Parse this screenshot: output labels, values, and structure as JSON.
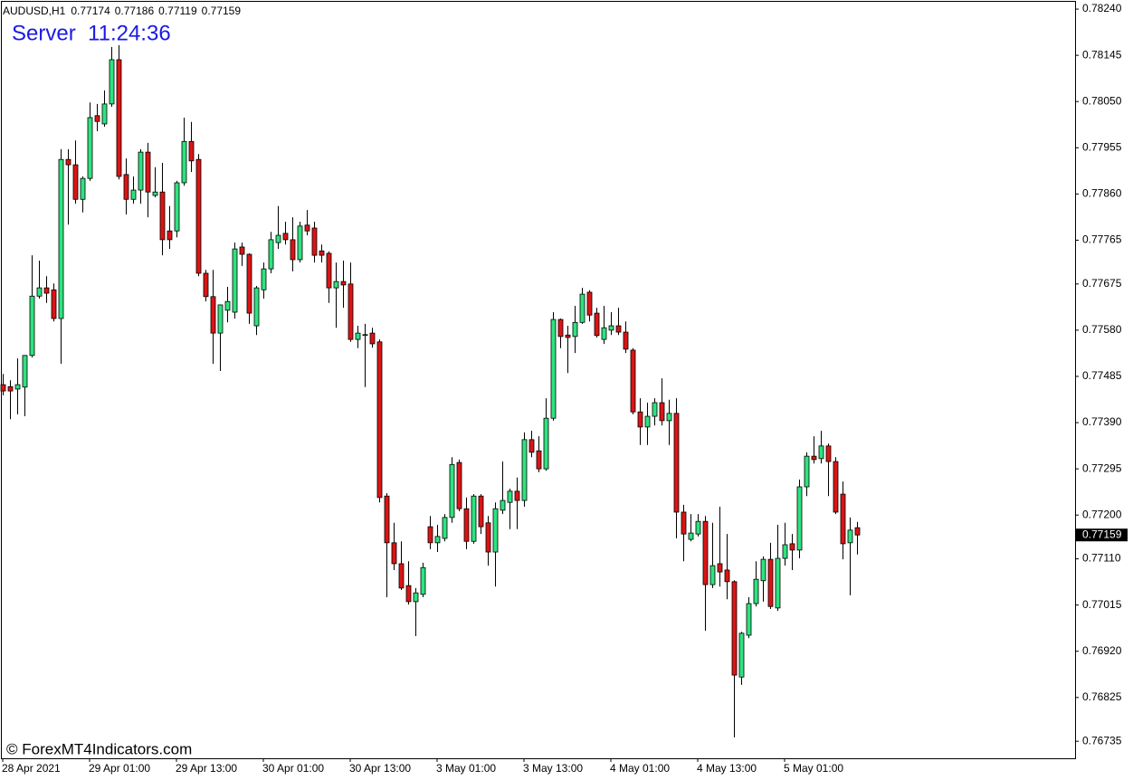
{
  "chart_data": {
    "type": "candlestick",
    "symbol": "AUDUSD,H1",
    "server_time": "Server  11:24:36",
    "watermark": "© ForexMT4Indicators.com",
    "up_color": "#2ee37f",
    "down_color": "#dc1414",
    "ylim": [
      0.767,
      0.78255
    ],
    "yticks": [
      {
        "value": 0.7824,
        "label": "0.78240"
      },
      0.78145,
      {
        "value": 0.7805,
        "label": "0.78050"
      },
      0.77955,
      {
        "value": 0.7786,
        "label": "0.77860"
      },
      0.77765,
      0.77675,
      {
        "value": 0.7758,
        "label": "0.77580"
      },
      0.77485,
      {
        "value": 0.7739,
        "label": "0.77390"
      },
      0.77295,
      {
        "value": 0.772,
        "label": "0.77200"
      },
      {
        "value": 0.7711,
        "label": "0.77110"
      },
      0.77015,
      {
        "value": 0.7692,
        "label": "0.76920"
      },
      0.76825,
      0.76735
    ],
    "x": [
      "28 Apr 2021",
      null,
      null,
      null,
      null,
      null,
      null,
      null,
      null,
      null,
      null,
      null,
      "29 Apr 01:00",
      null,
      null,
      null,
      null,
      null,
      null,
      null,
      null,
      null,
      null,
      null,
      "29 Apr 13:00",
      null,
      null,
      null,
      null,
      null,
      null,
      null,
      null,
      null,
      null,
      null,
      "30 Apr 01:00",
      null,
      null,
      null,
      null,
      null,
      null,
      null,
      null,
      null,
      null,
      null,
      "30 Apr 13:00",
      null,
      null,
      null,
      null,
      null,
      null,
      null,
      null,
      null,
      null,
      null,
      "3 May 01:00",
      null,
      null,
      null,
      null,
      null,
      null,
      null,
      null,
      null,
      null,
      null,
      "3 May 13:00",
      null,
      null,
      null,
      null,
      null,
      null,
      null,
      null,
      null,
      null,
      null,
      "4 May 01:00",
      null,
      null,
      null,
      null,
      null,
      null,
      null,
      null,
      null,
      null,
      null,
      "4 May 13:00",
      null,
      null,
      null,
      null,
      null,
      null,
      null,
      null,
      null,
      null,
      null,
      "5 May 01:00",
      null,
      null,
      null,
      null,
      null,
      null,
      null,
      null,
      null,
      null
    ],
    "ohlc": [
      [
        0.77468,
        0.7749,
        0.77446,
        0.77455
      ],
      [
        0.77464,
        0.77477,
        0.77397,
        0.77455
      ],
      [
        0.77459,
        0.77522,
        0.77407,
        0.77468
      ],
      [
        0.77463,
        0.77529,
        0.77403,
        0.77528
      ],
      [
        0.77528,
        0.77734,
        0.77524,
        0.7765
      ],
      [
        0.7765,
        0.77723,
        0.77645,
        0.77667
      ],
      [
        0.77667,
        0.77691,
        0.77636,
        0.77656
      ],
      [
        0.77663,
        0.77676,
        0.77598,
        0.77604
      ],
      [
        0.77604,
        0.77952,
        0.77511,
        0.77931
      ],
      [
        0.77931,
        0.77952,
        0.77797,
        0.7792
      ],
      [
        0.7792,
        0.7797,
        0.7784,
        0.77849
      ],
      [
        0.77849,
        0.77896,
        0.77822,
        0.77892
      ],
      [
        0.77892,
        0.78048,
        0.77887,
        0.78017
      ],
      [
        0.78021,
        0.78045,
        0.77989,
        0.78009
      ],
      [
        0.78004,
        0.78073,
        0.77998,
        0.78045
      ],
      [
        0.78045,
        0.78162,
        0.78039,
        0.78136
      ],
      [
        0.78136,
        0.78166,
        0.7789,
        0.77896
      ],
      [
        0.779,
        0.77933,
        0.77818,
        0.77849
      ],
      [
        0.77849,
        0.77896,
        0.7784,
        0.77868
      ],
      [
        0.77868,
        0.77952,
        0.7784,
        0.77946
      ],
      [
        0.77946,
        0.77965,
        0.77812,
        0.77864
      ],
      [
        0.77857,
        0.77915,
        0.77853,
        0.77864
      ],
      [
        0.77864,
        0.77924,
        0.77734,
        0.77766
      ],
      [
        0.77784,
        0.77835,
        0.77747,
        0.77766
      ],
      [
        0.77784,
        0.77887,
        0.77771,
        0.77883
      ],
      [
        0.77883,
        0.78017,
        0.77877,
        0.77968
      ],
      [
        0.77968,
        0.78008,
        0.77905,
        0.77928
      ],
      [
        0.77931,
        0.77942,
        0.77691,
        0.77697
      ],
      [
        0.77697,
        0.77704,
        0.77639,
        0.77649
      ],
      [
        0.77649,
        0.77704,
        0.77511,
        0.77574
      ],
      [
        0.77574,
        0.77632,
        0.77496,
        0.77632
      ],
      [
        0.77621,
        0.77669,
        0.77596,
        0.77639
      ],
      [
        0.77617,
        0.7776,
        0.77604,
        0.77747
      ],
      [
        0.77751,
        0.7776,
        0.77712,
        0.77736
      ],
      [
        0.77736,
        0.77738,
        0.77593,
        0.77615
      ],
      [
        0.77589,
        0.77671,
        0.7757,
        0.77667
      ],
      [
        0.77663,
        0.77719,
        0.77645,
        0.77706
      ],
      [
        0.77706,
        0.77782,
        0.77697,
        0.77766
      ],
      [
        0.7776,
        0.77835,
        0.77747,
        0.77775
      ],
      [
        0.77779,
        0.77803,
        0.77756,
        0.77766
      ],
      [
        0.77766,
        0.77812,
        0.77701,
        0.77725
      ],
      [
        0.77725,
        0.77803,
        0.77719,
        0.77794
      ],
      [
        0.77796,
        0.77827,
        0.77775,
        0.77784
      ],
      [
        0.7779,
        0.77803,
        0.77719,
        0.77734
      ],
      [
        0.77743,
        0.77756,
        0.77719,
        0.77734
      ],
      [
        0.77738,
        0.77742,
        0.77636,
        0.77667
      ],
      [
        0.77667,
        0.77719,
        0.77585,
        0.7768
      ],
      [
        0.7768,
        0.77723,
        0.77626,
        0.77673
      ],
      [
        0.77675,
        0.77719,
        0.77556,
        0.77561
      ],
      [
        0.77561,
        0.77589,
        0.77543,
        0.77574
      ],
      [
        0.7757,
        0.77593,
        0.77463,
        0.77571
      ],
      [
        0.77574,
        0.77585,
        0.77544,
        0.77552
      ],
      [
        0.77556,
        0.77561,
        0.77226,
        0.77236
      ],
      [
        0.77239,
        0.77245,
        0.77031,
        0.77143
      ],
      [
        0.77143,
        0.77184,
        0.77087,
        0.771
      ],
      [
        0.771,
        0.77146,
        0.77046,
        0.7705
      ],
      [
        0.77055,
        0.77105,
        0.77016,
        0.77022
      ],
      [
        0.77022,
        0.7705,
        0.76951,
        0.7704
      ],
      [
        0.77037,
        0.77102,
        0.77031,
        0.77092
      ],
      [
        0.77176,
        0.77198,
        0.7713,
        0.77143
      ],
      [
        0.77143,
        0.7718,
        0.77124,
        0.77156
      ],
      [
        0.77152,
        0.77202,
        0.77146,
        0.77195
      ],
      [
        0.77195,
        0.77319,
        0.77184,
        0.77304
      ],
      [
        0.77308,
        0.77314,
        0.77208,
        0.77213
      ],
      [
        0.77213,
        0.77236,
        0.7713,
        0.77146
      ],
      [
        0.77146,
        0.77243,
        0.77141,
        0.77239
      ],
      [
        0.77239,
        0.77243,
        0.77161,
        0.77176
      ],
      [
        0.77184,
        0.77198,
        0.77096,
        0.77124
      ],
      [
        0.77124,
        0.77226,
        0.77053,
        0.77213
      ],
      [
        0.7721,
        0.7731,
        0.77202,
        0.7723
      ],
      [
        0.77226,
        0.77254,
        0.77171,
        0.77249
      ],
      [
        0.77249,
        0.77277,
        0.77171,
        0.7723
      ],
      [
        0.7723,
        0.7737,
        0.77217,
        0.77355
      ],
      [
        0.77355,
        0.77373,
        0.77319,
        0.77329
      ],
      [
        0.77332,
        0.77362,
        0.77288,
        0.77295
      ],
      [
        0.77295,
        0.7744,
        0.77291,
        0.77399
      ],
      [
        0.77399,
        0.77617,
        0.77394,
        0.77602
      ],
      [
        0.77602,
        0.77604,
        0.77543,
        0.77567
      ],
      [
        0.7757,
        0.77589,
        0.77492,
        0.77565
      ],
      [
        0.77567,
        0.7763,
        0.77533,
        0.77596
      ],
      [
        0.77596,
        0.77667,
        0.77593,
        0.77654
      ],
      [
        0.77658,
        0.77662,
        0.77598,
        0.77611
      ],
      [
        0.77615,
        0.77626,
        0.77565,
        0.77569
      ],
      [
        0.77561,
        0.7763,
        0.77552,
        0.77585
      ],
      [
        0.7758,
        0.77617,
        0.7757,
        0.77589
      ],
      [
        0.77589,
        0.77626,
        0.7757,
        0.77576
      ],
      [
        0.77576,
        0.77598,
        0.77533,
        0.77541
      ],
      [
        0.77539,
        0.77543,
        0.77407,
        0.77412
      ],
      [
        0.77412,
        0.7744,
        0.77344,
        0.77381
      ],
      [
        0.77381,
        0.77431,
        0.77344,
        0.77403
      ],
      [
        0.77403,
        0.7744,
        0.77384,
        0.77431
      ],
      [
        0.77431,
        0.77481,
        0.77384,
        0.77394
      ],
      [
        0.77394,
        0.77437,
        0.77344,
        0.77409
      ],
      [
        0.77409,
        0.7744,
        0.77152,
        0.77206
      ],
      [
        0.77206,
        0.77221,
        0.77105,
        0.77161
      ],
      [
        0.7715,
        0.77202,
        0.77146,
        0.77163
      ],
      [
        0.77161,
        0.77202,
        0.77156,
        0.77187
      ],
      [
        0.77187,
        0.77198,
        0.76962,
        0.77057
      ],
      [
        0.77057,
        0.77184,
        0.7705,
        0.77096
      ],
      [
        0.771,
        0.77217,
        0.77053,
        0.77083
      ],
      [
        0.77087,
        0.77161,
        0.77027,
        0.77063
      ],
      [
        0.77063,
        0.77066,
        0.76743,
        0.76871
      ],
      [
        0.76867,
        0.7696,
        0.76851,
        0.76957
      ],
      [
        0.76953,
        0.77031,
        0.76947,
        0.77018
      ],
      [
        0.77018,
        0.77105,
        0.77012,
        0.77068
      ],
      [
        0.77065,
        0.77115,
        0.77022,
        0.77109
      ],
      [
        0.77109,
        0.77143,
        0.77007,
        0.77012
      ],
      [
        0.77009,
        0.7718,
        0.77003,
        0.77111
      ],
      [
        0.77111,
        0.77184,
        0.77096,
        0.77139
      ],
      [
        0.77141,
        0.77161,
        0.77087,
        0.77128
      ],
      [
        0.77128,
        0.77273,
        0.77111,
        0.77258
      ],
      [
        0.77258,
        0.77329,
        0.77239,
        0.77321
      ],
      [
        0.77321,
        0.77362,
        0.77306,
        0.77314
      ],
      [
        0.77316,
        0.77373,
        0.77306,
        0.77342
      ],
      [
        0.77342,
        0.77347,
        0.77239,
        0.7731
      ],
      [
        0.7731,
        0.77319,
        0.77202,
        0.77206
      ],
      [
        0.77243,
        0.77269,
        0.77109,
        0.77141
      ],
      [
        0.77143,
        0.77195,
        0.77035,
        0.77169
      ],
      [
        0.77174,
        0.77186,
        0.77119,
        0.77159
      ]
    ]
  }
}
